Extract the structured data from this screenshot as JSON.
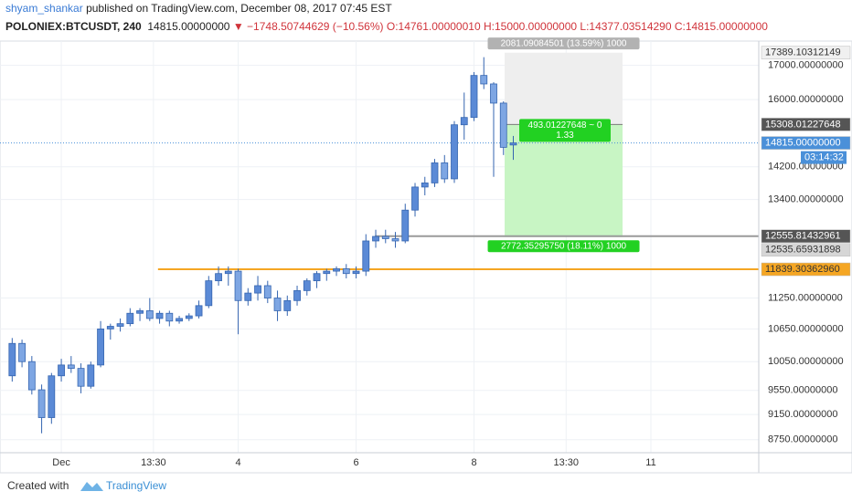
{
  "header": {
    "author": "shyam_shankar",
    "published": "published on TradingView.com, December 08, 2017 07:45 EST",
    "symbol": "POLONIEX:BTCUSDT, 240",
    "last": "14815.00000000",
    "arrow": "▼",
    "change": "−1748.50744629 (−10.56%)",
    "open": "O:14761.00000010",
    "high": "H:15000.00000000",
    "low": "L:14377.03514290",
    "close": "C:14815.00000000"
  },
  "footer": {
    "created": "Created with",
    "brand": "TradingView"
  },
  "chart_data": {
    "type": "candlestick",
    "color": "#5b8ad6",
    "edge_color": "#3565b0",
    "x": [
      0.1667,
      0.3333,
      0.5,
      0.6667,
      0.8333,
      1,
      1.1667,
      1.3333,
      1.5,
      1.6667,
      1.8333,
      2,
      2.1667,
      2.3333,
      2.5,
      2.6667,
      2.8333,
      3,
      3.1667,
      3.3333,
      3.5,
      3.6667,
      3.8333,
      4,
      4.1667,
      4.3333,
      4.5,
      4.6667,
      4.8333,
      5,
      5.1667,
      5.3333,
      5.5,
      5.6667,
      5.8333,
      6,
      6.1667,
      6.3333,
      6.5,
      6.6667,
      6.8333,
      7,
      7.1667,
      7.3333,
      7.5,
      7.6667,
      7.8333,
      8,
      8.1667,
      8.3333,
      8.5,
      8.6667
    ],
    "open": [
      9800,
      10380,
      10050,
      9560,
      9100,
      9800,
      9990,
      9930,
      9620,
      9990,
      10650,
      10700,
      10750,
      10950,
      11000,
      10850,
      10950,
      10800,
      10850,
      10900,
      11100,
      11600,
      11750,
      11800,
      11200,
      11350,
      11500,
      11250,
      11000,
      11200,
      11400,
      11600,
      11750,
      11800,
      11850,
      11750,
      11800,
      12450,
      12550,
      12500,
      12450,
      13150,
      13700,
      13800,
      14300,
      13900,
      15300,
      15500,
      16700,
      16450,
      15900,
      14761
    ],
    "high": [
      10480,
      10450,
      10150,
      9650,
      9850,
      10100,
      10150,
      10020,
      10050,
      10800,
      10750,
      10850,
      11050,
      11050,
      11250,
      11000,
      11000,
      10900,
      10950,
      11200,
      11700,
      11900,
      11900,
      11850,
      11450,
      11700,
      11600,
      11400,
      11300,
      11500,
      11650,
      11800,
      11850,
      11900,
      11950,
      11900,
      12600,
      12700,
      12700,
      12650,
      13300,
      13800,
      13950,
      14400,
      14500,
      15400,
      16200,
      16800,
      17250,
      16500,
      15950,
      15000
    ],
    "low": [
      9700,
      9950,
      9480,
      8850,
      9000,
      9700,
      9850,
      9500,
      9580,
      9950,
      10450,
      10600,
      10700,
      10800,
      10800,
      10750,
      10700,
      10750,
      10800,
      10850,
      11050,
      11500,
      11500,
      10550,
      11100,
      11200,
      11150,
      10800,
      10900,
      11100,
      11300,
      11450,
      11600,
      11700,
      11650,
      11650,
      11700,
      12300,
      12400,
      12300,
      12400,
      13000,
      13500,
      13700,
      13800,
      13800,
      14900,
      15400,
      16300,
      13950,
      14500,
      14377.0351429
    ],
    "close": [
      10380,
      10050,
      9560,
      9100,
      9800,
      9990,
      9930,
      9620,
      9990,
      10650,
      10700,
      10750,
      10950,
      11000,
      10850,
      10950,
      10800,
      10850,
      10900,
      11100,
      11600,
      11750,
      11800,
      11200,
      11350,
      11500,
      11250,
      11000,
      11200,
      11400,
      11600,
      11750,
      11800,
      11850,
      11750,
      11800,
      12450,
      12550,
      12500,
      12450,
      13150,
      13700,
      13800,
      14300,
      13900,
      15300,
      15500,
      16700,
      16450,
      15900,
      14700,
      14815
    ],
    "xlim": [
      -0.04,
      12.83
    ],
    "xticks": [
      {
        "value": 1,
        "label": "Dec"
      },
      {
        "value": 2.5625,
        "label": "13:30"
      },
      {
        "value": 4,
        "label": "4"
      },
      {
        "value": 6,
        "label": "6"
      },
      {
        "value": 8,
        "label": "8"
      },
      {
        "value": 9.5625,
        "label": "13:30"
      },
      {
        "value": 11,
        "label": "11"
      }
    ],
    "ylim": [
      8550,
      17750
    ],
    "log_scale": true,
    "grid": true,
    "yticks": [
      {
        "value": 8750,
        "label": "8750.00000000"
      },
      {
        "value": 9150,
        "label": "9150.00000000"
      },
      {
        "value": 9550,
        "label": "9550.00000000"
      },
      {
        "value": 10050,
        "label": "10050.00000000"
      },
      {
        "value": 10650,
        "label": "10650.00000000"
      },
      {
        "value": 11250,
        "label": "11250.00000000"
      },
      {
        "value": 13400,
        "label": "13400.00000000"
      },
      {
        "value": 14200,
        "label": "14200.00000000"
      },
      {
        "value": 16000,
        "label": "16000.00000000"
      },
      {
        "value": 17000,
        "label": "17000.00000000"
      }
    ],
    "lines": [
      {
        "value": 11839.3036296,
        "label": "11839.30362960",
        "color": "#f5a623",
        "x_start": 2.64
      },
      {
        "value": 12555.81432961,
        "label": "12555.81432961",
        "color": "#9a9a9a",
        "x_start": 6.32
      }
    ],
    "current_price": {
      "value": 14815,
      "label": "14815.00000000",
      "countdown": "03:14:32",
      "color": "#4a90d9"
    },
    "position": {
      "x_range": [
        8.52,
        10.52
      ],
      "top": {
        "value": 17389.10312149,
        "label": "17389.10312149"
      },
      "entry": {
        "value": 15308.01227648,
        "label": "15308.01227648"
      },
      "bottom": {
        "value": 12535.65931898,
        "label": "12535.65931898"
      },
      "top_label": "2081.09084501 (13.59%) 1000",
      "middle_label": "493.01227648 ~ 0",
      "ratio": "1.33",
      "bottom_label": "2772.35295750 (18.11%) 1000"
    }
  }
}
